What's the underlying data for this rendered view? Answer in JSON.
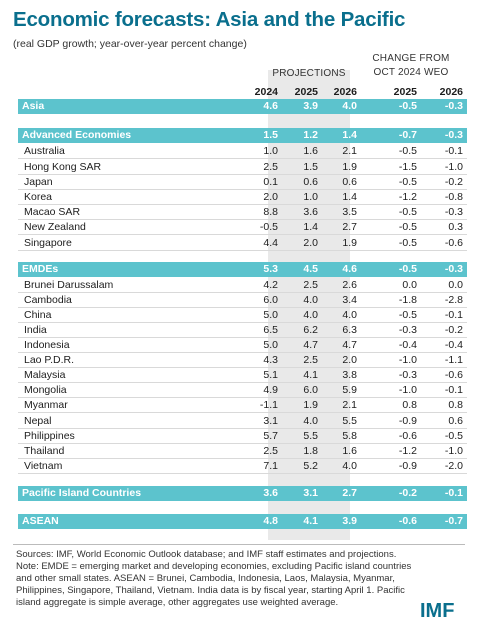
{
  "title": "Economic forecasts: Asia and the Pacific",
  "subtitle": "(real GDP growth; year-over-year percent change)",
  "projections_label": "PROJECTIONS",
  "change_label_line1": "CHANGE FROM",
  "change_label_line2": "OCT 2024 WEO",
  "headers": [
    "2024",
    "2025",
    "2026",
    "2025",
    "2026"
  ],
  "rows": [
    {
      "name": "Asia",
      "type": "highlight",
      "vals": [
        "4.6",
        "3.9",
        "4.0",
        "-0.5",
        "-0.3"
      ]
    },
    {
      "name": "Advanced Economies",
      "type": "highlight",
      "vals": [
        "1.5",
        "1.2",
        "1.4",
        "-0.7",
        "-0.3"
      ]
    },
    {
      "name": "Australia",
      "type": "sub",
      "vals": [
        "1.0",
        "1.6",
        "2.1",
        "-0.5",
        "-0.1"
      ]
    },
    {
      "name": "Hong Kong SAR",
      "type": "sub",
      "vals": [
        "2.5",
        "1.5",
        "1.9",
        "-1.5",
        "-1.0"
      ]
    },
    {
      "name": "Japan",
      "type": "sub",
      "vals": [
        "0.1",
        "0.6",
        "0.6",
        "-0.5",
        "-0.2"
      ]
    },
    {
      "name": "Korea",
      "type": "sub",
      "vals": [
        "2.0",
        "1.0",
        "1.4",
        "-1.2",
        "-0.8"
      ]
    },
    {
      "name": "Macao SAR",
      "type": "sub",
      "vals": [
        "8.8",
        "3.6",
        "3.5",
        "-0.5",
        "-0.3"
      ]
    },
    {
      "name": "New Zealand",
      "type": "sub",
      "vals": [
        "-0.5",
        "1.4",
        "2.7",
        "-0.5",
        "0.3"
      ]
    },
    {
      "name": "Singapore",
      "type": "sub",
      "vals": [
        "4.4",
        "2.0",
        "1.9",
        "-0.5",
        "-0.6"
      ]
    },
    {
      "name": "EMDEs",
      "type": "highlight",
      "vals": [
        "5.3",
        "4.5",
        "4.6",
        "-0.5",
        "-0.3"
      ]
    },
    {
      "name": "Brunei Darussalam",
      "type": "sub",
      "vals": [
        "4.2",
        "2.5",
        "2.6",
        "0.0",
        "0.0"
      ]
    },
    {
      "name": "Cambodia",
      "type": "sub",
      "vals": [
        "6.0",
        "4.0",
        "3.4",
        "-1.8",
        "-2.8"
      ]
    },
    {
      "name": "China",
      "type": "sub",
      "vals": [
        "5.0",
        "4.0",
        "4.0",
        "-0.5",
        "-0.1"
      ]
    },
    {
      "name": "India",
      "type": "sub",
      "vals": [
        "6.5",
        "6.2",
        "6.3",
        "-0.3",
        "-0.2"
      ]
    },
    {
      "name": "Indonesia",
      "type": "sub",
      "vals": [
        "5.0",
        "4.7",
        "4.7",
        "-0.4",
        "-0.4"
      ]
    },
    {
      "name": "Lao P.D.R.",
      "type": "sub",
      "vals": [
        "4.3",
        "2.5",
        "2.0",
        "-1.0",
        "-1.1"
      ]
    },
    {
      "name": "Malaysia",
      "type": "sub",
      "vals": [
        "5.1",
        "4.1",
        "3.8",
        "-0.3",
        "-0.6"
      ]
    },
    {
      "name": "Mongolia",
      "type": "sub",
      "vals": [
        "4.9",
        "6.0",
        "5.9",
        "-1.0",
        "-0.1"
      ]
    },
    {
      "name": "Myanmar",
      "type": "sub",
      "vals": [
        "-1.1",
        "1.9",
        "2.1",
        "0.8",
        "0.8"
      ]
    },
    {
      "name": "Nepal",
      "type": "sub",
      "vals": [
        "3.1",
        "4.0",
        "5.5",
        "-0.9",
        "0.6"
      ]
    },
    {
      "name": "Philippines",
      "type": "sub",
      "vals": [
        "5.7",
        "5.5",
        "5.8",
        "-0.6",
        "-0.5"
      ]
    },
    {
      "name": "Thailand",
      "type": "sub",
      "vals": [
        "2.5",
        "1.8",
        "1.6",
        "-1.2",
        "-1.0"
      ]
    },
    {
      "name": "Vietnam",
      "type": "sub",
      "vals": [
        "7.1",
        "5.2",
        "4.0",
        "-0.9",
        "-2.0"
      ]
    },
    {
      "name": "Pacific Island Countries",
      "type": "highlight",
      "vals": [
        "3.6",
        "3.1",
        "2.7",
        "-0.2",
        "-0.1"
      ]
    },
    {
      "name": "ASEAN",
      "type": "highlight",
      "vals": [
        "4.8",
        "4.1",
        "3.9",
        "-0.6",
        "-0.7"
      ]
    }
  ],
  "sources": "Sources: IMF, World Economic Outlook database; and IMF staff estimates and projections. Note: EMDE = emerging market and developing economies, excluding Pacific island countries and other small states. ASEAN = Brunei, Cambodia, Indonesia, Laos, Malaysia, Myanmar, Philippines, Singapore, Thailand, Vietnam. India data is by fiscal year, starting April 1. Pacific island aggregate is simple average, other aggregates use weighted average.",
  "logo": "IMF",
  "colors": {
    "title": "#0a6f8d",
    "highlight": "#5cc3cd",
    "projection_shade": "#e9e9e9"
  }
}
